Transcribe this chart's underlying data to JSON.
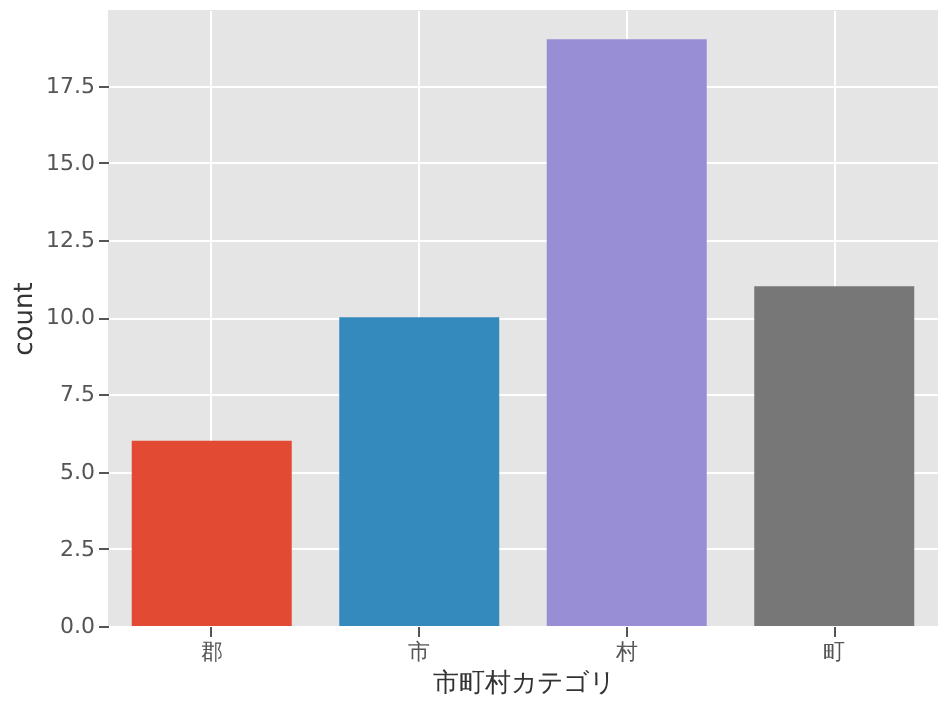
{
  "chart_data": {
    "type": "bar",
    "xlabel": "市町村カテゴリ",
    "ylabel": "count",
    "categories": [
      "郡",
      "市",
      "村",
      "町"
    ],
    "values": [
      6,
      10,
      19,
      11
    ],
    "colors": [
      "#e24a33",
      "#348abd",
      "#988ed5",
      "#777777"
    ],
    "ylim": [
      0,
      19.95
    ],
    "yticks": [
      {
        "value": 0,
        "label": "0.0"
      },
      {
        "value": 2.5,
        "label": "2.5"
      },
      {
        "value": 5,
        "label": "5.0"
      },
      {
        "value": 7.5,
        "label": "7.5"
      },
      {
        "value": 10,
        "label": "10.0"
      },
      {
        "value": 12.5,
        "label": "12.5"
      },
      {
        "value": 15,
        "label": "15.0"
      },
      {
        "value": 17.5,
        "label": "17.5"
      }
    ],
    "grid": true
  }
}
